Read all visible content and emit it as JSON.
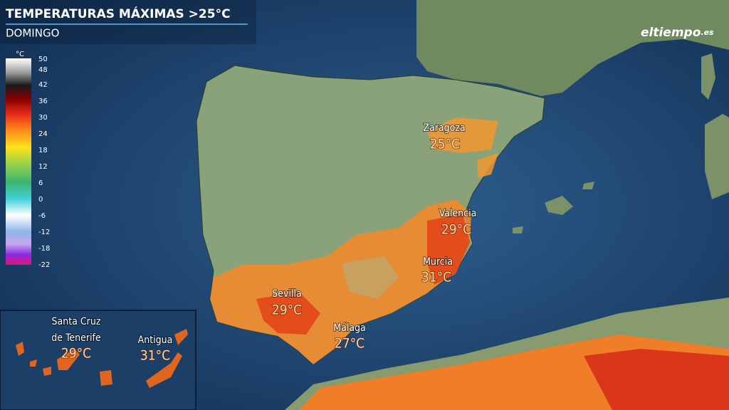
{
  "header": {
    "title": "TEMPERATURAS MÁXIMAS >25°C",
    "subtitle": "DOMINGO"
  },
  "logo": {
    "name": "eltiempo",
    "suffix": ".es"
  },
  "legend": {
    "unit": "°C",
    "ticks": [
      50,
      48,
      42,
      36,
      30,
      24,
      18,
      12,
      6,
      0,
      -6,
      -12,
      -18,
      -22
    ]
  },
  "cities": [
    {
      "name": "Zaragoza",
      "temp": "25°C"
    },
    {
      "name": "Valencia",
      "temp": "29°C"
    },
    {
      "name": "Murcia",
      "temp": "31°C"
    },
    {
      "name": "Sevilla",
      "temp": "29°C"
    },
    {
      "name": "Málaga",
      "temp": "27°C"
    }
  ],
  "inset": {
    "cities": [
      {
        "name_lines": [
          "Santa Cruz",
          "de Tenerife"
        ],
        "temp": "29°C"
      },
      {
        "name": "Antigua",
        "temp": "31°C"
      }
    ]
  }
}
